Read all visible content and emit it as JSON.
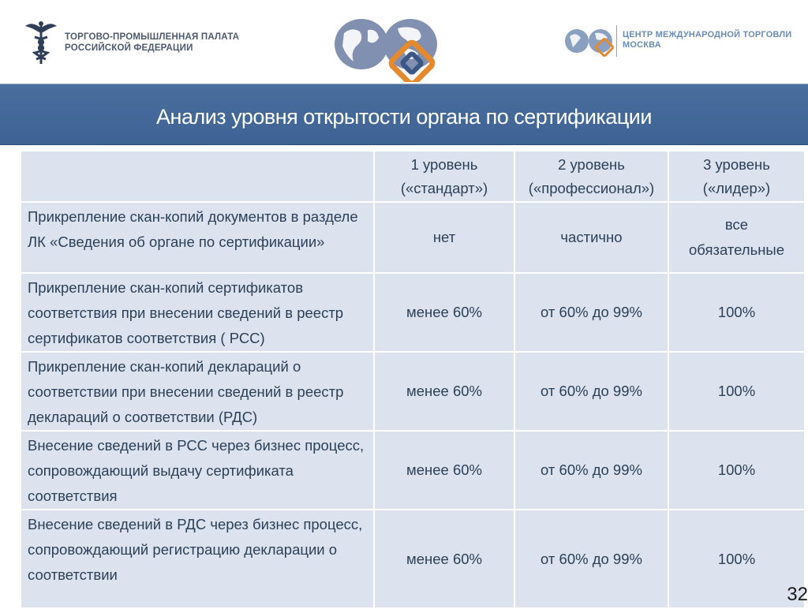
{
  "header": {
    "cci_line1": "ТОРГОВО-ПРОМЫШЛЕННАЯ ПАЛАТА",
    "cci_line2": "РОССИЙСКОЙ ФЕДЕРАЦИИ",
    "wtc_line1": "ЦЕНТР МЕЖДУНАРОДНОЙ ТОРГОВЛИ",
    "wtc_line2": "МОСКВА"
  },
  "title": "Анализ уровня открытости органа по сертификации",
  "table": {
    "columns": [
      {
        "line1": "1 уровень",
        "line2": "(«стандарт»)"
      },
      {
        "line1": "2 уровень",
        "line2": "(«профессионал»)"
      },
      {
        "line1": "3 уровень",
        "line2": "(«лидер»)"
      }
    ],
    "rows": [
      {
        "criterion": [
          "Прикрепление скан-копий документов в разделе",
          "ЛК «Сведения об органе по сертификации»"
        ],
        "level1": "нет",
        "level2": "частично",
        "level3": [
          "все",
          "обязательные"
        ]
      },
      {
        "criterion": [
          "Прикрепление скан-копий сертификатов",
          "соответствия при внесении сведений в реестр",
          "сертификатов соответствия ( РСС)"
        ],
        "level1": "менее 60%",
        "level2": "от 60% до 99%",
        "level3": [
          "100%"
        ]
      },
      {
        "criterion": [
          "Прикрепление скан-копий деклараций о",
          "соответствии при внесении сведений в реестр",
          "деклараций о соответствии (РДС)"
        ],
        "level1": "менее 60%",
        "level2": "от 60% до 99%",
        "level3": [
          "100%"
        ]
      },
      {
        "criterion": [
          "Внесение сведений в РСС через бизнес процесс,",
          "сопровождающий выдачу сертификата",
          "соответствия"
        ],
        "level1": "менее 60%",
        "level2": "от 60% до 99%",
        "level3": [
          "100%"
        ]
      },
      {
        "criterion": [
          "Внесение сведений в РДС через бизнес процесс,",
          "сопровождающий регистрацию декларации о",
          "соответствии"
        ],
        "level1": "менее 60%",
        "level2": "от 60% до 99%",
        "level3": [
          "100%"
        ]
      }
    ]
  },
  "page_number": "32",
  "colors": {
    "title_band": "#3d6394",
    "cell_bg": "#dce3ee",
    "cell_text": "#2b3f58"
  }
}
